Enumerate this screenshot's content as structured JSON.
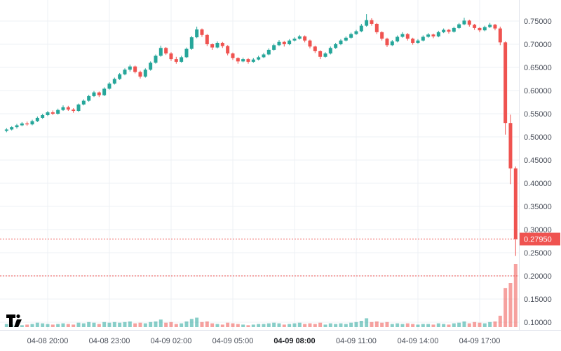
{
  "branding": {
    "logo_name": "TradingView"
  },
  "chart_data": {
    "type": "candlestick",
    "title": "",
    "interval_minutes": 15,
    "start_label": "04-08 18:00",
    "x_ticks": [
      {
        "label": "04-08 20:00",
        "index": 8,
        "bold": false
      },
      {
        "label": "04-08 23:00",
        "index": 20,
        "bold": false
      },
      {
        "label": "04-09 02:00",
        "index": 32,
        "bold": false
      },
      {
        "label": "04-09 05:00",
        "index": 44,
        "bold": false
      },
      {
        "label": "04-09 08:00",
        "index": 56,
        "bold": true
      },
      {
        "label": "04-09 11:00",
        "index": 68,
        "bold": false
      },
      {
        "label": "04-09 14:00",
        "index": 80,
        "bold": false
      },
      {
        "label": "04-09 17:00",
        "index": 92,
        "bold": false
      }
    ],
    "y_axis": {
      "max": 0.75,
      "min": 0.1,
      "step": 0.05,
      "labels": [
        "0.75000",
        "0.70000",
        "0.65000",
        "0.60000",
        "0.55000",
        "0.50000",
        "0.45000",
        "0.40000",
        "0.35000",
        "0.30000",
        "0.25000",
        "0.20000",
        "0.15000",
        "0.10000"
      ]
    },
    "ylim": [
      0.085,
      0.795
    ],
    "grid": true,
    "last_price": 0.2795,
    "last_price_label": "0.27950",
    "price_lines": [
      {
        "value": 0.2795,
        "style": "dashed"
      },
      {
        "value": 0.2,
        "style": "dashed"
      }
    ],
    "colors": {
      "up": "#26a69a",
      "down": "#ef5350",
      "grid": "#edf0f4",
      "axis_line": "#e0e3eb",
      "axis_text": "#4a4f5a",
      "axis_text_bold": "#1d1f23",
      "label_bg": "#ef5350",
      "label_text": "#ffffff",
      "bg": "#ffffff",
      "logo": "#000000"
    },
    "candles": [
      [
        0.513,
        0.519,
        0.51,
        0.516,
        5
      ],
      [
        0.516,
        0.523,
        0.514,
        0.521,
        4
      ],
      [
        0.521,
        0.528,
        0.518,
        0.525,
        6
      ],
      [
        0.525,
        0.532,
        0.523,
        0.529,
        3
      ],
      [
        0.529,
        0.533,
        0.524,
        0.527,
        4
      ],
      [
        0.527,
        0.537,
        0.525,
        0.534,
        5
      ],
      [
        0.534,
        0.544,
        0.532,
        0.541,
        7
      ],
      [
        0.541,
        0.55,
        0.539,
        0.547,
        6
      ],
      [
        0.547,
        0.556,
        0.545,
        0.553,
        5
      ],
      [
        0.553,
        0.557,
        0.547,
        0.55,
        4
      ],
      [
        0.55,
        0.561,
        0.548,
        0.558,
        5
      ],
      [
        0.558,
        0.568,
        0.556,
        0.564,
        6
      ],
      [
        0.564,
        0.567,
        0.556,
        0.559,
        5
      ],
      [
        0.559,
        0.562,
        0.552,
        0.556,
        4
      ],
      [
        0.556,
        0.572,
        0.554,
        0.57,
        7
      ],
      [
        0.57,
        0.581,
        0.568,
        0.578,
        6
      ],
      [
        0.578,
        0.591,
        0.576,
        0.588,
        8
      ],
      [
        0.588,
        0.599,
        0.586,
        0.596,
        7
      ],
      [
        0.596,
        0.598,
        0.586,
        0.59,
        5
      ],
      [
        0.59,
        0.607,
        0.588,
        0.604,
        8
      ],
      [
        0.604,
        0.618,
        0.602,
        0.615,
        7
      ],
      [
        0.615,
        0.628,
        0.613,
        0.625,
        8
      ],
      [
        0.625,
        0.638,
        0.623,
        0.635,
        7
      ],
      [
        0.635,
        0.648,
        0.633,
        0.645,
        8
      ],
      [
        0.645,
        0.656,
        0.641,
        0.652,
        9
      ],
      [
        0.652,
        0.654,
        0.637,
        0.64,
        6
      ],
      [
        0.64,
        0.643,
        0.626,
        0.63,
        7
      ],
      [
        0.63,
        0.648,
        0.628,
        0.645,
        6
      ],
      [
        0.645,
        0.663,
        0.643,
        0.66,
        8
      ],
      [
        0.66,
        0.678,
        0.658,
        0.675,
        9
      ],
      [
        0.675,
        0.697,
        0.673,
        0.692,
        12
      ],
      [
        0.692,
        0.694,
        0.677,
        0.68,
        7
      ],
      [
        0.68,
        0.683,
        0.664,
        0.668,
        8
      ],
      [
        0.668,
        0.673,
        0.658,
        0.662,
        5
      ],
      [
        0.662,
        0.675,
        0.66,
        0.672,
        6
      ],
      [
        0.672,
        0.693,
        0.67,
        0.69,
        9
      ],
      [
        0.69,
        0.718,
        0.688,
        0.715,
        13
      ],
      [
        0.715,
        0.738,
        0.713,
        0.732,
        15
      ],
      [
        0.732,
        0.734,
        0.716,
        0.72,
        8
      ],
      [
        0.72,
        0.722,
        0.696,
        0.7,
        9
      ],
      [
        0.7,
        0.702,
        0.688,
        0.693,
        6
      ],
      [
        0.693,
        0.706,
        0.691,
        0.703,
        5
      ],
      [
        0.703,
        0.705,
        0.692,
        0.696,
        4
      ],
      [
        0.696,
        0.698,
        0.676,
        0.68,
        7
      ],
      [
        0.68,
        0.682,
        0.666,
        0.67,
        6
      ],
      [
        0.67,
        0.672,
        0.658,
        0.663,
        5
      ],
      [
        0.663,
        0.671,
        0.661,
        0.668,
        4
      ],
      [
        0.668,
        0.67,
        0.658,
        0.662,
        3
      ],
      [
        0.662,
        0.67,
        0.66,
        0.667,
        4
      ],
      [
        0.667,
        0.675,
        0.665,
        0.672,
        5
      ],
      [
        0.672,
        0.681,
        0.67,
        0.678,
        5
      ],
      [
        0.678,
        0.691,
        0.676,
        0.688,
        6
      ],
      [
        0.688,
        0.701,
        0.686,
        0.698,
        7
      ],
      [
        0.698,
        0.709,
        0.696,
        0.705,
        6
      ],
      [
        0.705,
        0.707,
        0.695,
        0.7,
        4
      ],
      [
        0.7,
        0.711,
        0.698,
        0.708,
        5
      ],
      [
        0.708,
        0.715,
        0.706,
        0.712,
        6
      ],
      [
        0.712,
        0.72,
        0.71,
        0.717,
        7
      ],
      [
        0.717,
        0.719,
        0.704,
        0.708,
        5
      ],
      [
        0.708,
        0.71,
        0.691,
        0.695,
        6
      ],
      [
        0.695,
        0.697,
        0.681,
        0.685,
        5
      ],
      [
        0.685,
        0.687,
        0.668,
        0.673,
        7
      ],
      [
        0.673,
        0.683,
        0.671,
        0.68,
        4
      ],
      [
        0.68,
        0.695,
        0.678,
        0.692,
        6
      ],
      [
        0.692,
        0.703,
        0.69,
        0.7,
        5
      ],
      [
        0.7,
        0.711,
        0.698,
        0.708,
        6
      ],
      [
        0.708,
        0.717,
        0.706,
        0.714,
        5
      ],
      [
        0.714,
        0.725,
        0.712,
        0.722,
        7
      ],
      [
        0.722,
        0.731,
        0.72,
        0.728,
        8
      ],
      [
        0.728,
        0.744,
        0.726,
        0.74,
        10
      ],
      [
        0.74,
        0.765,
        0.738,
        0.752,
        14
      ],
      [
        0.752,
        0.756,
        0.74,
        0.744,
        8
      ],
      [
        0.744,
        0.746,
        0.722,
        0.726,
        9
      ],
      [
        0.726,
        0.728,
        0.708,
        0.712,
        7
      ],
      [
        0.712,
        0.714,
        0.694,
        0.698,
        8
      ],
      [
        0.698,
        0.709,
        0.696,
        0.706,
        5
      ],
      [
        0.706,
        0.719,
        0.704,
        0.716,
        6
      ],
      [
        0.716,
        0.726,
        0.714,
        0.722,
        5
      ],
      [
        0.722,
        0.724,
        0.708,
        0.712,
        6
      ],
      [
        0.712,
        0.714,
        0.699,
        0.703,
        5
      ],
      [
        0.703,
        0.711,
        0.701,
        0.708,
        4
      ],
      [
        0.708,
        0.719,
        0.706,
        0.716,
        5
      ],
      [
        0.716,
        0.724,
        0.714,
        0.721,
        5
      ],
      [
        0.721,
        0.723,
        0.713,
        0.717,
        4
      ],
      [
        0.717,
        0.729,
        0.715,
        0.726,
        6
      ],
      [
        0.726,
        0.734,
        0.724,
        0.731,
        5
      ],
      [
        0.731,
        0.733,
        0.723,
        0.727,
        4
      ],
      [
        0.727,
        0.738,
        0.725,
        0.735,
        6
      ],
      [
        0.735,
        0.746,
        0.733,
        0.743,
        7
      ],
      [
        0.743,
        0.757,
        0.741,
        0.751,
        9
      ],
      [
        0.751,
        0.753,
        0.738,
        0.742,
        6
      ],
      [
        0.742,
        0.744,
        0.731,
        0.735,
        8
      ],
      [
        0.735,
        0.737,
        0.726,
        0.73,
        7
      ],
      [
        0.73,
        0.74,
        0.728,
        0.737,
        6
      ],
      [
        0.737,
        0.746,
        0.735,
        0.742,
        8
      ],
      [
        0.742,
        0.744,
        0.73,
        0.734,
        9
      ],
      [
        0.734,
        0.738,
        0.698,
        0.704,
        18
      ],
      [
        0.704,
        0.706,
        0.505,
        0.53,
        62
      ],
      [
        0.53,
        0.548,
        0.398,
        0.432,
        70
      ],
      [
        0.432,
        0.436,
        0.243,
        0.2795,
        100
      ]
    ]
  }
}
